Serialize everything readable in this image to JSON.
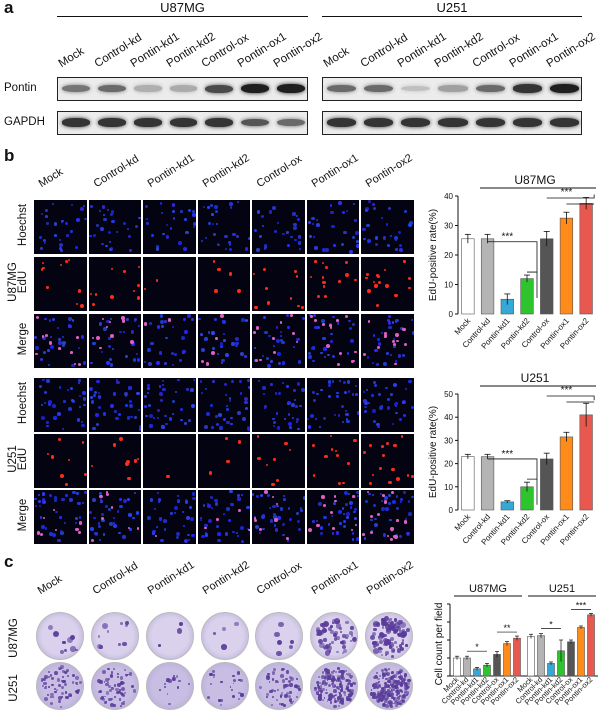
{
  "panel_a": {
    "label": "a",
    "groups": [
      {
        "title": "U87MG",
        "lanes": [
          "Mock",
          "Control-kd",
          "Pontin-kd1",
          "Pontin-kd2",
          "Control-ox",
          "Pontin-ox1",
          "Pontin-ox2"
        ]
      },
      {
        "title": "U251",
        "lanes": [
          "Mock",
          "Control-kd",
          "Pontin-kd1",
          "Pontin-kd2",
          "Control-ox",
          "Pontin-ox1",
          "Pontin-ox2"
        ]
      }
    ],
    "rows": [
      "Pontin",
      "GAPDH"
    ],
    "pontin_intensity": [
      [
        0.55,
        0.6,
        0.28,
        0.3,
        0.75,
        0.95,
        0.95
      ],
      [
        0.6,
        0.6,
        0.2,
        0.35,
        0.6,
        0.85,
        0.95
      ]
    ],
    "gapdh_intensity": [
      [
        0.85,
        0.85,
        0.85,
        0.85,
        0.85,
        0.7,
        0.6
      ],
      [
        0.85,
        0.85,
        0.85,
        0.85,
        0.85,
        0.85,
        0.85
      ]
    ]
  },
  "panel_b": {
    "label": "b",
    "columns": [
      "Mock",
      "Control-kd",
      "Pontin-kd1",
      "Pontin-kd2",
      "Control-ox",
      "Pontin-ox1",
      "Pontin-ox2"
    ],
    "cell_lines": [
      {
        "name": "U87MG",
        "rows": [
          "Hoechst",
          "EdU",
          "Merge"
        ]
      },
      {
        "name": "U251",
        "rows": [
          "Hoechst",
          "EdU",
          "Merge"
        ]
      }
    ],
    "edu_density": [
      [
        0.25,
        0.25,
        0.06,
        0.12,
        0.25,
        0.32,
        0.37
      ],
      [
        0.23,
        0.23,
        0.04,
        0.1,
        0.22,
        0.31,
        0.41
      ]
    ]
  },
  "panel_c": {
    "label": "c",
    "columns": [
      "Mock",
      "Control-kd",
      "Pontin-kd1",
      "Pontin-kd2",
      "Control-ox",
      "Pontin-ox1",
      "Pontin-ox2"
    ],
    "rows": [
      "U87MG",
      "U251"
    ]
  },
  "chart_data": [
    {
      "type": "bar",
      "title": "U87MG",
      "ylabel": "EdU-positive rate(%)",
      "categories": [
        "Mock",
        "Control-kd",
        "Pontin-kd1",
        "Pontin-kd2",
        "Control-ox",
        "Pontin-ox1",
        "Pontin-ox2"
      ],
      "values": [
        25.5,
        25.5,
        5.0,
        12.0,
        25.5,
        32.5,
        37.5
      ],
      "errors": [
        1.5,
        1.5,
        1.8,
        1.2,
        2.5,
        2.0,
        2.0
      ],
      "colors": [
        "#ffffff",
        "#b4b4b4",
        "#35a8d6",
        "#2ec42e",
        "#555555",
        "#ff8c1a",
        "#e8584f"
      ],
      "ylim": [
        0,
        40
      ],
      "yticks": [
        "0",
        "10",
        "20",
        "30",
        "40"
      ],
      "significance": [
        {
          "label": "***"
        },
        {
          "label": "***"
        }
      ]
    },
    {
      "type": "bar",
      "title": "U251",
      "ylabel": "EdU-positive rate(%)",
      "categories": [
        "Mock",
        "Control-kd",
        "Pontin-kd1",
        "Pontin-kd2",
        "Control-ox",
        "Pontin-ox1",
        "Pontin-ox2"
      ],
      "values": [
        23.0,
        23.0,
        3.5,
        10.0,
        22.0,
        31.5,
        41.0
      ],
      "errors": [
        1.0,
        1.0,
        0.5,
        2.0,
        2.5,
        2.0,
        5.0
      ],
      "colors": [
        "#ffffff",
        "#b4b4b4",
        "#35a8d6",
        "#2ec42e",
        "#555555",
        "#ff8c1a",
        "#e8584f"
      ],
      "ylim": [
        0,
        50
      ],
      "yticks": [
        "0",
        "10",
        "20",
        "30",
        "40",
        "50"
      ],
      "significance": [
        {
          "label": "***"
        },
        {
          "label": "***"
        }
      ]
    },
    {
      "type": "bar",
      "ylabel": "Cell count per field",
      "groups": [
        {
          "title": "U87MG",
          "categories": [
            "Mock",
            "Control-kd",
            "Pontin-kd1",
            "Pontin-kd2",
            "Control-ox",
            "Pontin-ox1",
            "Pontin-ox2"
          ],
          "values": [
            50,
            50,
            20,
            30,
            60,
            90,
            105
          ],
          "errors": [
            5,
            5,
            4,
            5,
            8,
            6,
            6
          ]
        },
        {
          "title": "U251",
          "categories": [
            "Mock",
            "Control-kd",
            "Pontin-kd1",
            "Pontin-kd2",
            "Control-ox",
            "Pontin-ox1",
            "Pontin-ox2"
          ],
          "values": [
            110,
            112,
            35,
            70,
            95,
            135,
            170
          ],
          "errors": [
            6,
            6,
            4,
            30,
            5,
            4,
            4
          ]
        }
      ],
      "colors": [
        "#ffffff",
        "#b4b4b4",
        "#35a8d6",
        "#2ec42e",
        "#555555",
        "#ff8c1a",
        "#e8584f"
      ],
      "ylim": [
        0,
        200
      ],
      "significance": [
        {
          "label": "*"
        },
        {
          "label": "**"
        },
        {
          "label": "*"
        },
        {
          "label": "***"
        }
      ]
    }
  ]
}
